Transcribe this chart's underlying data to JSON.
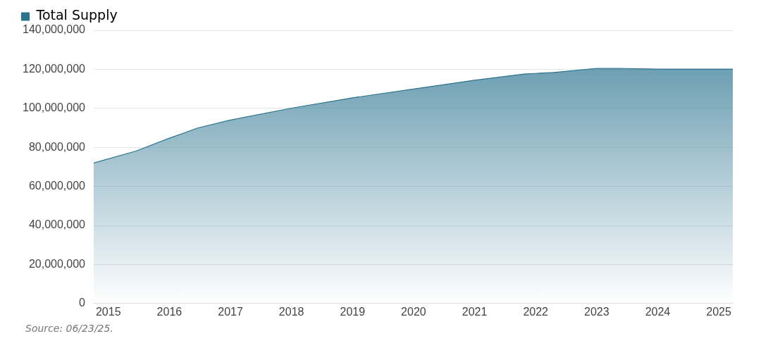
{
  "chart_data": {
    "type": "area",
    "x": [
      2014.76,
      2015.45,
      2016,
      2016.46,
      2017,
      2018,
      2018.85,
      2019,
      2020,
      2021,
      2021.81,
      2022.3,
      2023,
      2023.35,
      2024,
      2024.77,
      2025.23
    ],
    "series": [
      {
        "name": "Total Supply",
        "color": "#2b7490",
        "values": [
          72000000,
          78100000,
          84700000,
          89900000,
          94000000,
          100100000,
          104600000,
          105400000,
          109900000,
          114400000,
          117600000,
          118400000,
          120500000,
          120500000,
          120100000,
          120100000,
          120100000
        ]
      }
    ],
    "xlim": [
      2014.76,
      2025.23
    ],
    "xticks": [
      2015,
      2016,
      2017,
      2018,
      2019,
      2020,
      2021,
      2022,
      2023,
      2024,
      2025
    ],
    "ylim": [
      0,
      140000000
    ],
    "yticks": [
      0,
      {
        "value": 20000000,
        "label": "20,000,000"
      },
      {
        "value": 40000000,
        "label": "40,000,000"
      },
      {
        "value": 60000000,
        "label": "60,000,000"
      },
      {
        "value": 80000000,
        "label": "80,000,000"
      },
      {
        "value": 100000000,
        "label": "100,000,000"
      },
      {
        "value": 120000000,
        "label": "120,000,000"
      },
      {
        "value": 140000000,
        "label": "140,000,000"
      }
    ],
    "grid": "y",
    "legend": "top left",
    "marker": "none",
    "annotations": [
      "Source: 06/23/25."
    ]
  }
}
